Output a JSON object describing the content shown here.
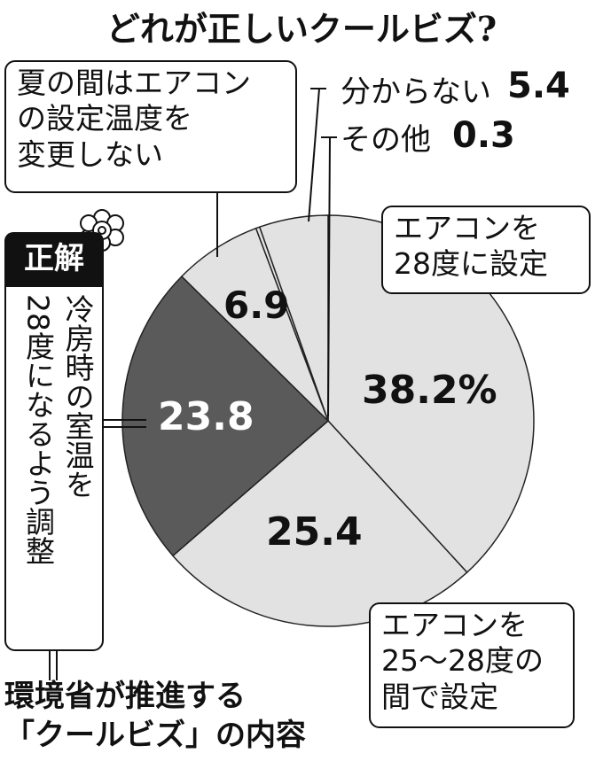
{
  "chart_data": {
    "type": "pie",
    "title": "どれが正しいクールビズ?",
    "categories": [
      "エアコンを\n28度に設定",
      "エアコンを\n25～28度の\n間で設定",
      "冷房時の室温を\n28度になるよう調整",
      "夏の間はエアコン\nの設定温度を\n変更しない",
      "その他",
      "分からない"
    ],
    "values": [
      38.2,
      25.4,
      23.8,
      6.9,
      0.3,
      5.4
    ],
    "value_labels": [
      "38.2%",
      "25.4",
      "23.8",
      "6.9",
      "0.3",
      "5.4"
    ],
    "colors": [
      "#e2e2e2",
      "#e2e2e2",
      "#5a5a5a",
      "#e2e2e2",
      "#e2e2e2",
      "#e2e2e2"
    ],
    "badge": "正解",
    "footnote": "環境省が推進する\n「クールビズ」の内容"
  }
}
